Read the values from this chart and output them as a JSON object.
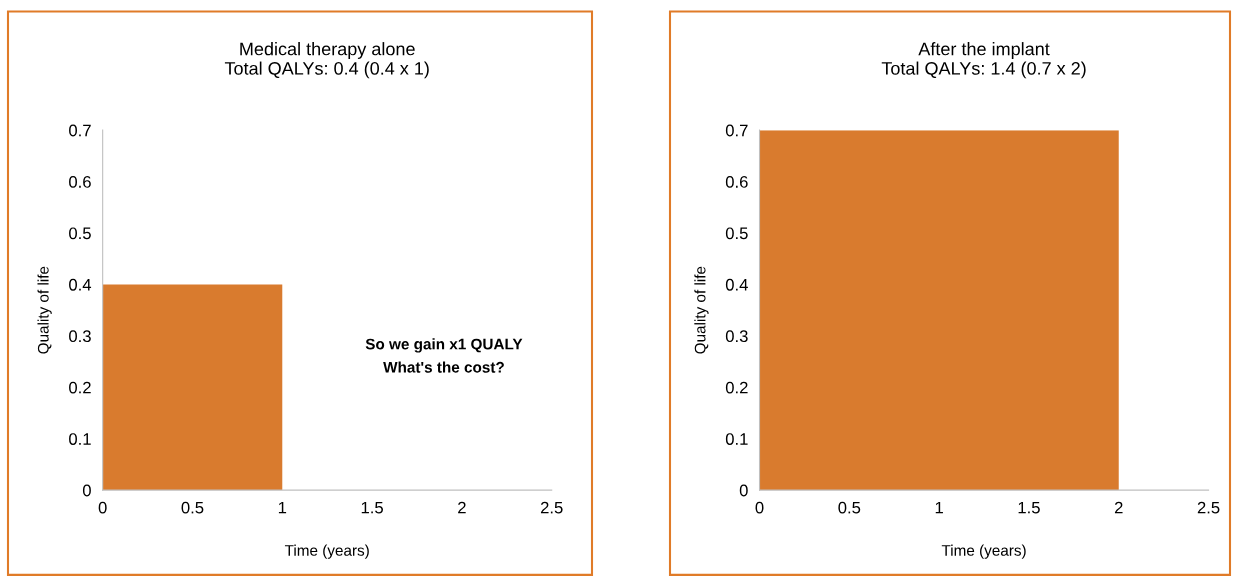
{
  "chart_data": [
    {
      "type": "area",
      "title": "Medical therapy alone\nTotal QALYs: 0.4 (0.4 x 1)",
      "xlabel": "Time (years)",
      "ylabel": "Quality of life",
      "x": [
        0,
        1
      ],
      "series": [
        {
          "color": "#d97b2e",
          "values": [
            0.4,
            0.4
          ]
        }
      ],
      "xlim": [
        0,
        2.5
      ],
      "xticks": [
        0,
        0.5,
        1,
        1.5,
        2,
        2.5
      ],
      "ylim": [
        0,
        0.7
      ],
      "yticks": [
        0,
        0.1,
        0.2,
        0.3,
        0.4,
        0.5,
        0.6,
        0.7
      ],
      "annotations": [
        "So we gain x1 QUALY\nWhat's the cost?"
      ]
    },
    {
      "type": "area",
      "title": "After the implant\nTotal QALYs: 1.4 (0.7 x 2)",
      "xlabel": "Time (years)",
      "ylabel": "Quality of life",
      "x": [
        0,
        2
      ],
      "series": [
        {
          "color": "#d97b2e",
          "values": [
            0.7,
            0.7
          ]
        }
      ],
      "xlim": [
        0,
        2.5
      ],
      "xticks": [
        0,
        0.5,
        1,
        1.5,
        2,
        2.5
      ],
      "ylim": [
        0,
        0.7
      ],
      "yticks": [
        0,
        0.1,
        0.2,
        0.3,
        0.4,
        0.5,
        0.6,
        0.7
      ]
    }
  ]
}
